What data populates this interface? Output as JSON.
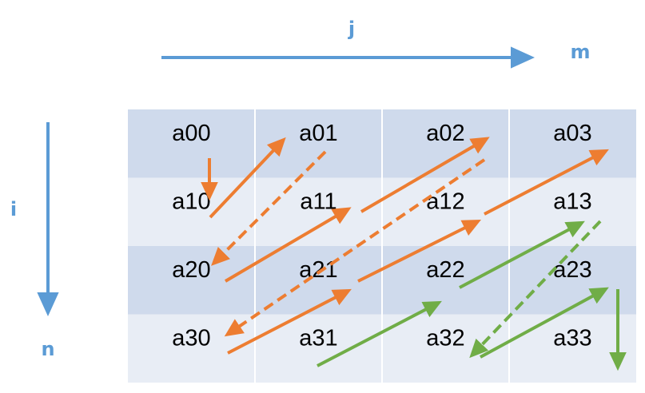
{
  "axes": {
    "column_index": "j",
    "column_count": "m",
    "row_index": "i",
    "row_count": "n"
  },
  "matrix": {
    "rows": [
      [
        "a00",
        "a01",
        "a02",
        "a03"
      ],
      [
        "a10",
        "a11",
        "a12",
        "a13"
      ],
      [
        "a20",
        "a21",
        "a22",
        "a23"
      ],
      [
        "a30",
        "a31",
        "a32",
        "a33"
      ]
    ]
  },
  "colors": {
    "axis": "#5b9bd5",
    "band_dark": "#cfdaec",
    "band_light": "#e8edf5",
    "grid_line": "#ffffff",
    "arrow_orange": "#ed7d31",
    "arrow_green": "#70ad47",
    "text": "#000000"
  },
  "traversal": [
    {
      "color": "orange",
      "style": "solid",
      "from": "a00",
      "to": "a10"
    },
    {
      "color": "orange",
      "style": "solid",
      "from": "a10",
      "to": "a01"
    },
    {
      "color": "orange",
      "style": "dashed",
      "from": "a01",
      "to": "a20"
    },
    {
      "color": "orange",
      "style": "solid",
      "from": "a20",
      "to": "a11"
    },
    {
      "color": "orange",
      "style": "solid",
      "from": "a11",
      "to": "a02"
    },
    {
      "color": "orange",
      "style": "dashed",
      "from": "a02",
      "to": "a30"
    },
    {
      "color": "orange",
      "style": "solid",
      "from": "a30",
      "to": "a21"
    },
    {
      "color": "orange",
      "style": "solid",
      "from": "a21",
      "to": "a12"
    },
    {
      "color": "orange",
      "style": "solid",
      "from": "a12",
      "to": "a03"
    },
    {
      "color": "green",
      "style": "solid",
      "from": "a31",
      "to": "a22"
    },
    {
      "color": "green",
      "style": "solid",
      "from": "a22",
      "to": "a13"
    },
    {
      "color": "green",
      "style": "dashed",
      "from": "a13",
      "to": "a32"
    },
    {
      "color": "green",
      "style": "solid",
      "from": "a32",
      "to": "a23"
    },
    {
      "color": "green",
      "style": "solid",
      "from": "a23",
      "to": "a33"
    }
  ]
}
